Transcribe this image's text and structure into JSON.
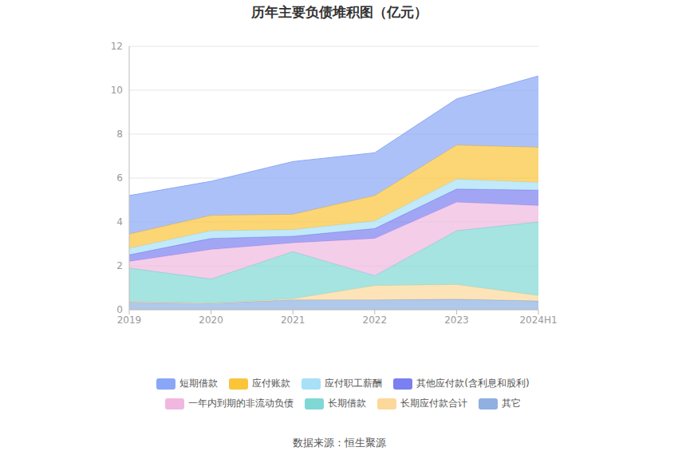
{
  "chart_data": {
    "type": "area",
    "title": "历年主要负债堆积图（亿元）",
    "source": "数据来源：恒生聚源",
    "stacked": true,
    "grid": true,
    "legend": "bottom",
    "categories": [
      "2019",
      "2020",
      "2021",
      "2022",
      "2023",
      "2024H1"
    ],
    "ylim": [
      0,
      12
    ],
    "yticks": [
      0,
      2,
      4,
      6,
      8,
      10,
      12
    ],
    "series": [
      {
        "name": "短期借款",
        "color": "#8aa6f7",
        "values": [
          1.75,
          1.55,
          2.4,
          1.95,
          2.1,
          3.25
        ]
      },
      {
        "name": "应付账款",
        "color": "#fbc53a",
        "values": [
          0.65,
          0.7,
          0.7,
          1.15,
          1.55,
          1.6
        ]
      },
      {
        "name": "应付职工薪酬",
        "color": "#a8e0f7",
        "values": [
          0.3,
          0.35,
          0.3,
          0.35,
          0.45,
          0.35
        ]
      },
      {
        "name": "其他应付款(含利息和股利)",
        "color": "#7b7ff0",
        "values": [
          0.3,
          0.5,
          0.3,
          0.45,
          0.6,
          0.7
        ]
      },
      {
        "name": "一年内到期的非流动负债",
        "color": "#f0b8e0",
        "values": [
          0.3,
          1.35,
          0.4,
          1.7,
          1.3,
          0.75
        ]
      },
      {
        "name": "长期借款",
        "color": "#7fd8d4",
        "values": [
          1.52,
          1.1,
          2.15,
          0.45,
          2.45,
          3.35
        ]
      },
      {
        "name": "长期应付款合计",
        "color": "#fcd89a",
        "values": [
          0.03,
          0,
          0.05,
          0.65,
          0.67,
          0.25
        ]
      },
      {
        "name": "其它",
        "color": "#8fb0e0",
        "values": [
          0.35,
          0.3,
          0.45,
          0.45,
          0.48,
          0.4
        ]
      }
    ]
  }
}
